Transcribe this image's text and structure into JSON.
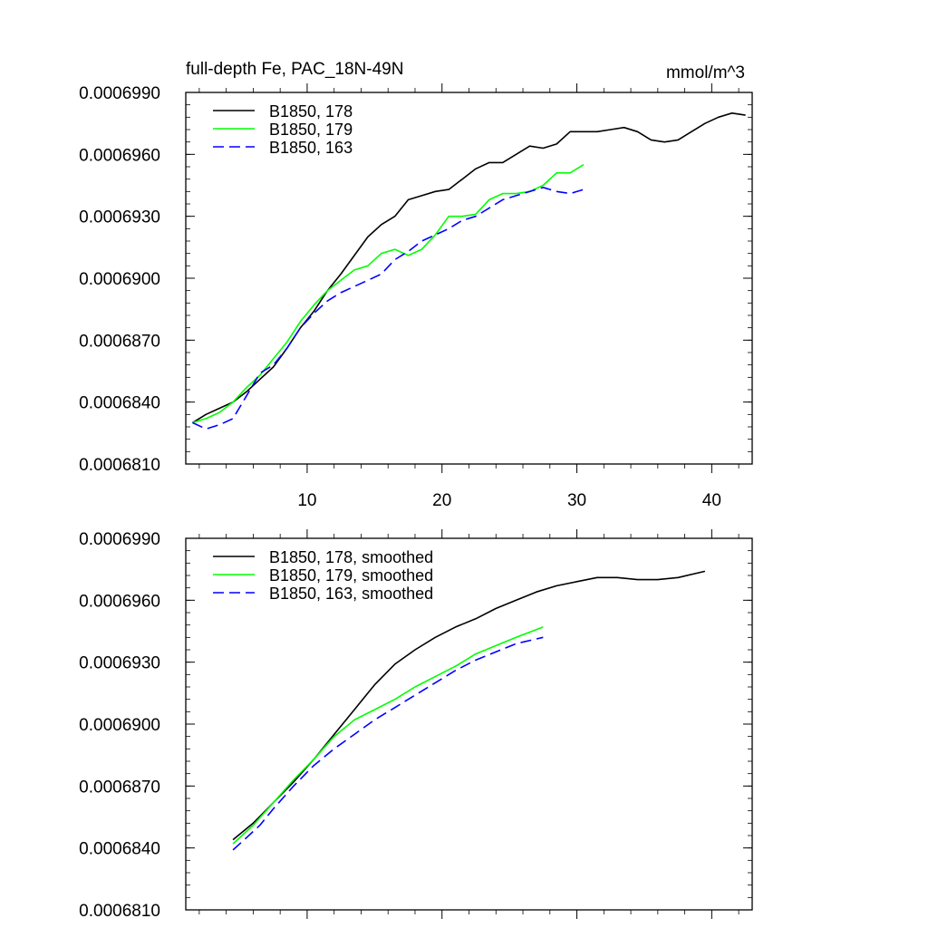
{
  "chart_data": [
    {
      "type": "line",
      "title": "full-depth Fe, PAC_18N-49N",
      "units": "mmol/m^3",
      "xlim": [
        1,
        43
      ],
      "ylim": [
        0.000681,
        0.000699
      ],
      "x_ticks": [
        10,
        20,
        30,
        40
      ],
      "x_tick_labels": [
        "10",
        "20",
        "30",
        "40"
      ],
      "y_ticks": [
        0.000681,
        0.000684,
        0.000687,
        0.00069,
        0.000693,
        0.000696,
        0.000699
      ],
      "y_tick_labels": [
        "0.0006810",
        "0.0006840",
        "0.0006870",
        "0.0006900",
        "0.0006930",
        "0.0006960",
        "0.0006990"
      ],
      "legend": "top-left",
      "series": [
        {
          "name": "B1850, 178",
          "color": "#000000",
          "dash": "solid",
          "x": [
            1.5,
            2.5,
            3.5,
            4.5,
            5.5,
            6.5,
            7.5,
            8.5,
            9.5,
            10.5,
            11.5,
            12.5,
            13.5,
            14.5,
            15.5,
            16.5,
            17.5,
            18.5,
            19.5,
            20.5,
            21.5,
            22.5,
            23.5,
            24.5,
            25.5,
            26.5,
            27.5,
            28.5,
            29.5,
            30.5,
            31.5,
            32.5,
            33.5,
            34.5,
            35.5,
            36.5,
            37.5,
            38.5,
            39.5,
            40.5,
            41.5,
            42.5
          ],
          "values": [
            0.000683,
            0.0006834,
            0.0006837,
            0.000684,
            0.0006845,
            0.0006851,
            0.0006857,
            0.0006866,
            0.0006876,
            0.0006884,
            0.0006894,
            0.0006902,
            0.0006911,
            0.000692,
            0.0006926,
            0.000693,
            0.0006938,
            0.000694,
            0.0006942,
            0.0006943,
            0.0006948,
            0.0006953,
            0.0006956,
            0.0006956,
            0.000696,
            0.0006964,
            0.0006963,
            0.0006965,
            0.0006971,
            0.0006971,
            0.0006971,
            0.0006972,
            0.0006973,
            0.0006971,
            0.0006967,
            0.0006966,
            0.0006967,
            0.0006971,
            0.0006975,
            0.0006978,
            0.000698,
            0.0006979
          ]
        },
        {
          "name": "B1850, 179",
          "color": "#00ff00",
          "dash": "solid",
          "x": [
            1.5,
            2.5,
            3.5,
            4.5,
            5.5,
            6.5,
            7.5,
            8.5,
            9.5,
            10.5,
            11.5,
            12.5,
            13.5,
            14.5,
            15.5,
            16.5,
            17.5,
            18.5,
            19.5,
            20.5,
            21.5,
            22.5,
            23.5,
            24.5,
            25.5,
            26.5,
            27.5,
            28.5,
            29.5,
            30.5
          ],
          "values": [
            0.000683,
            0.0006832,
            0.0006835,
            0.000684,
            0.0006847,
            0.0006853,
            0.0006861,
            0.0006869,
            0.0006879,
            0.0006887,
            0.0006894,
            0.0006899,
            0.0006904,
            0.0006906,
            0.0006912,
            0.0006914,
            0.0006911,
            0.0006914,
            0.0006921,
            0.000693,
            0.000693,
            0.0006931,
            0.0006938,
            0.0006941,
            0.0006941,
            0.0006942,
            0.0006945,
            0.0006951,
            0.0006951,
            0.0006955
          ]
        },
        {
          "name": "B1850, 163",
          "color": "#0000ff",
          "dash": "dashed",
          "x": [
            1.5,
            2.5,
            3.5,
            4.5,
            5.5,
            6.5,
            7.5,
            8.5,
            9.5,
            10.5,
            11.5,
            12.5,
            13.5,
            14.5,
            15.5,
            16.5,
            17.5,
            18.5,
            19.5,
            20.5,
            21.5,
            22.5,
            23.5,
            24.5,
            25.5,
            26.5,
            27.5,
            28.5,
            29.5,
            30.5
          ],
          "values": [
            0.000683,
            0.0006827,
            0.0006829,
            0.0006832,
            0.0006843,
            0.0006854,
            0.0006858,
            0.0006866,
            0.0006876,
            0.0006883,
            0.0006889,
            0.0006893,
            0.0006896,
            0.0006899,
            0.0006902,
            0.0006909,
            0.0006913,
            0.0006918,
            0.0006921,
            0.0006924,
            0.0006928,
            0.000693,
            0.0006934,
            0.0006938,
            0.000694,
            0.0006942,
            0.0006944,
            0.0006942,
            0.0006941,
            0.0006943
          ]
        }
      ]
    },
    {
      "type": "line",
      "title": "",
      "units": "",
      "xlim": [
        1,
        43
      ],
      "ylim": [
        0.000681,
        0.000699
      ],
      "x_ticks": [
        10,
        20,
        30,
        40
      ],
      "x_tick_labels": [],
      "y_ticks": [
        0.000681,
        0.000684,
        0.000687,
        0.00069,
        0.000693,
        0.000696,
        0.000699
      ],
      "y_tick_labels": [
        "0.0006810",
        "0.0006840",
        "0.0006870",
        "0.0006900",
        "0.0006930",
        "0.0006960",
        "0.0006990"
      ],
      "legend": "top-left",
      "series": [
        {
          "name": "B1850, 178, smoothed",
          "color": "#000000",
          "dash": "solid",
          "x": [
            4.5,
            6,
            7.5,
            9,
            10.5,
            12,
            13.5,
            15,
            16.5,
            18,
            19.5,
            21,
            22.5,
            24,
            25.5,
            27,
            28.5,
            30,
            31.5,
            33,
            34.5,
            36,
            37.5,
            39.5
          ],
          "values": [
            0.0006844,
            0.0006852,
            0.0006862,
            0.0006872,
            0.0006883,
            0.0006895,
            0.0006907,
            0.0006919,
            0.0006929,
            0.0006936,
            0.0006942,
            0.0006947,
            0.0006951,
            0.0006956,
            0.000696,
            0.0006964,
            0.0006967,
            0.0006969,
            0.0006971,
            0.0006971,
            0.000697,
            0.000697,
            0.0006971,
            0.0006974
          ]
        },
        {
          "name": "B1850, 179, smoothed",
          "color": "#00ff00",
          "dash": "solid",
          "x": [
            4.5,
            6,
            7.5,
            9,
            10.5,
            12,
            13.5,
            15,
            16.5,
            18,
            19.5,
            21,
            22.5,
            24,
            25.5,
            27.5
          ],
          "values": [
            0.0006842,
            0.0006851,
            0.0006862,
            0.0006873,
            0.0006883,
            0.0006894,
            0.0006902,
            0.0006907,
            0.0006912,
            0.0006918,
            0.0006923,
            0.0006928,
            0.0006934,
            0.0006938,
            0.0006942,
            0.0006947
          ]
        },
        {
          "name": "B1850, 163, smoothed",
          "color": "#0000ff",
          "dash": "dashed",
          "x": [
            4.5,
            5.5,
            6.5,
            7.5,
            9,
            10.5,
            12,
            13.5,
            15,
            16.5,
            18,
            19.5,
            21,
            22.5,
            24,
            25.5,
            27.5
          ],
          "values": [
            0.0006839,
            0.0006845,
            0.0006851,
            0.0006859,
            0.000687,
            0.000688,
            0.0006888,
            0.0006895,
            0.0006902,
            0.0006908,
            0.0006914,
            0.000692,
            0.0006926,
            0.0006931,
            0.0006935,
            0.0006939,
            0.0006942
          ]
        }
      ]
    }
  ]
}
